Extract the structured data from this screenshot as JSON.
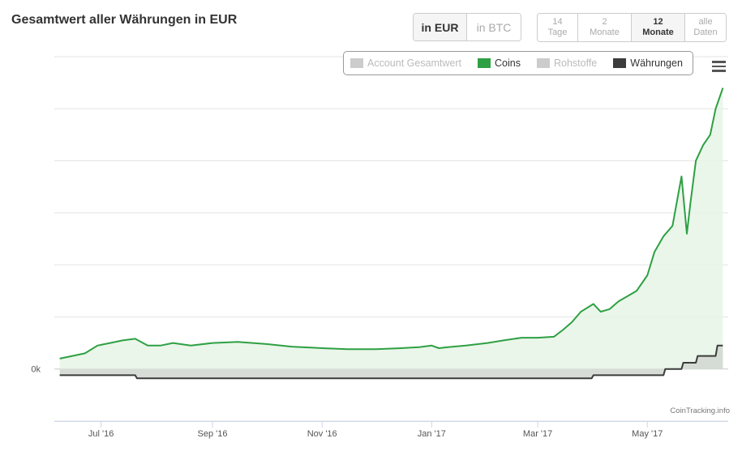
{
  "title": "Gesamtwert aller Währungen in EUR",
  "currency_buttons": [
    {
      "label": "in EUR",
      "active": true
    },
    {
      "label": "in BTC",
      "active": false
    }
  ],
  "range_buttons": [
    {
      "line1": "14",
      "line2": "Tage",
      "active": false
    },
    {
      "line1": "2",
      "line2": "Monate",
      "active": false
    },
    {
      "line1": "12",
      "line2": "Monate",
      "active": true
    },
    {
      "line1": "alle",
      "line2": "Daten",
      "active": false
    }
  ],
  "credit": "CoinTracking.info",
  "colors": {
    "coins": "#2ea043",
    "coins_fill": "#e6f4e6",
    "waehrungen": "#3c3c3c",
    "waehrungen_fill": "#d3d8d3",
    "inactive": "#cccccc"
  },
  "chart_data": {
    "type": "area",
    "title": "Gesamtwert aller Währungen in EUR",
    "x_type": "datetime",
    "x_range": [
      "2016-06-05",
      "2017-06-15"
    ],
    "x_ticks": [
      "Jul '16",
      "Sep '16",
      "Nov '16",
      "Jan '17",
      "Mar '17",
      "May '17"
    ],
    "y_ticks": [
      "0k"
    ],
    "y_range": [
      -1,
      6
    ],
    "grid": true,
    "legend": {
      "placement": "top-right",
      "entries": [
        {
          "name": "Account Gesamtwert",
          "visible": false
        },
        {
          "name": "Coins",
          "visible": true
        },
        {
          "name": "Rohstoffe",
          "visible": false
        },
        {
          "name": "Währungen",
          "visible": true
        }
      ]
    },
    "series": [
      {
        "name": "Coins",
        "x": [
          "2016-06-08",
          "2016-06-15",
          "2016-06-22",
          "2016-06-29",
          "2016-07-06",
          "2016-07-13",
          "2016-07-20",
          "2016-07-27",
          "2016-08-03",
          "2016-08-10",
          "2016-08-20",
          "2016-09-01",
          "2016-09-15",
          "2016-10-01",
          "2016-10-15",
          "2016-11-01",
          "2016-11-15",
          "2016-12-01",
          "2016-12-15",
          "2016-12-25",
          "2017-01-01",
          "2017-01-05",
          "2017-01-10",
          "2017-01-20",
          "2017-02-01",
          "2017-02-10",
          "2017-02-20",
          "2017-03-01",
          "2017-03-10",
          "2017-03-15",
          "2017-03-20",
          "2017-03-25",
          "2017-04-01",
          "2017-04-05",
          "2017-04-10",
          "2017-04-15",
          "2017-04-20",
          "2017-04-25",
          "2017-05-01",
          "2017-05-05",
          "2017-05-10",
          "2017-05-15",
          "2017-05-20",
          "2017-05-23",
          "2017-05-25",
          "2017-05-28",
          "2017-06-01",
          "2017-06-05",
          "2017-06-08",
          "2017-06-12"
        ],
        "values": [
          0.2,
          0.25,
          0.3,
          0.45,
          0.5,
          0.55,
          0.58,
          0.45,
          0.45,
          0.5,
          0.45,
          0.5,
          0.52,
          0.48,
          0.43,
          0.4,
          0.38,
          0.38,
          0.4,
          0.42,
          0.45,
          0.4,
          0.42,
          0.45,
          0.5,
          0.55,
          0.6,
          0.6,
          0.62,
          0.75,
          0.9,
          1.1,
          1.25,
          1.1,
          1.15,
          1.3,
          1.4,
          1.5,
          1.8,
          2.25,
          2.55,
          2.75,
          3.7,
          2.6,
          3.2,
          4.0,
          4.3,
          4.5,
          5.0,
          5.4
        ]
      },
      {
        "name": "Währungen",
        "x": [
          "2016-06-08",
          "2016-07-20",
          "2016-07-21",
          "2017-03-31",
          "2017-04-01",
          "2017-05-10",
          "2017-05-11",
          "2017-05-20",
          "2017-05-21",
          "2017-05-28",
          "2017-05-29",
          "2017-06-08",
          "2017-06-09",
          "2017-06-12"
        ],
        "values": [
          -0.12,
          -0.12,
          -0.18,
          -0.18,
          -0.12,
          -0.12,
          0.0,
          0.0,
          0.12,
          0.12,
          0.25,
          0.25,
          0.45,
          0.45
        ]
      }
    ]
  }
}
